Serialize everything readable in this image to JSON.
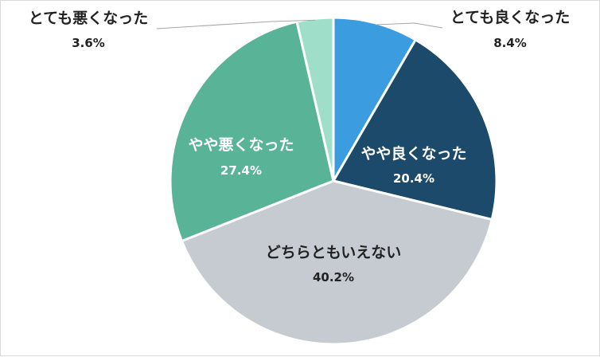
{
  "chart_data": {
    "type": "pie",
    "title": "",
    "start_angle_deg": 0,
    "direction": "clockwise",
    "legend": "none",
    "slices": [
      {
        "label": "とても良くなった",
        "value": 8.4,
        "value_label": "8.4%",
        "color": "#3b9de0",
        "label_color": "#222222",
        "label_position": "outside"
      },
      {
        "label": "やや良くなった",
        "value": 20.4,
        "value_label": "20.4%",
        "color": "#1b4a6b",
        "label_color": "#ffffff",
        "label_position": "inside"
      },
      {
        "label": "どちらともいえない",
        "value": 40.2,
        "value_label": "40.2%",
        "color": "#c5cbd0",
        "label_color": "#222222",
        "label_position": "inside"
      },
      {
        "label": "やや悪くなった",
        "value": 27.4,
        "value_label": "27.4%",
        "color": "#59b396",
        "label_color": "#ffffff",
        "label_position": "inside"
      },
      {
        "label": "とても悪くなった",
        "value": 3.6,
        "value_label": "3.6%",
        "color": "#9fdfca",
        "label_color": "#222222",
        "label_position": "outside"
      }
    ]
  }
}
